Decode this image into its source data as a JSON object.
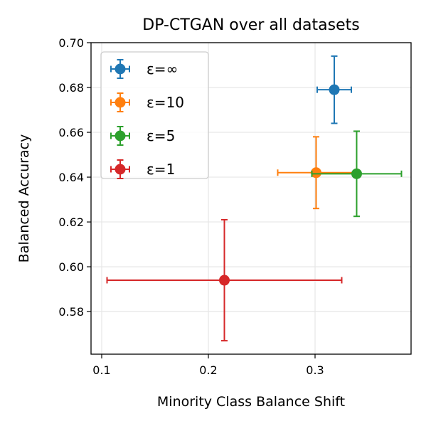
{
  "chart_data": {
    "type": "scatter",
    "title": "DP-CTGAN over all datasets",
    "xlabel": "Minority Class Balance Shift",
    "ylabel": "Balanced Accuracy",
    "xlim": [
      0.09,
      0.39
    ],
    "ylim": [
      0.561,
      0.7
    ],
    "xticks": [
      0.1,
      0.2,
      0.3
    ],
    "xtick_labels": [
      "0.1",
      "0.2",
      "0.3"
    ],
    "yticks": [
      0.58,
      0.6,
      0.62,
      0.64,
      0.66,
      0.68,
      0.7
    ],
    "ytick_labels": [
      "0.58",
      "0.60",
      "0.62",
      "0.64",
      "0.66",
      "0.68",
      "0.70"
    ],
    "grid": true,
    "legend_position": "top-left",
    "series": [
      {
        "name": "ε=∞",
        "color": "#1f77b4",
        "x": 0.318,
        "y": 0.679,
        "xerr": 0.016,
        "yerr": 0.015
      },
      {
        "name": "ε=10",
        "color": "#ff7f0e",
        "x": 0.301,
        "y": 0.642,
        "xerr": 0.036,
        "yerr": 0.016
      },
      {
        "name": "ε=5",
        "color": "#2ca02c",
        "x": 0.339,
        "y": 0.6415,
        "xerr": 0.042,
        "yerr": 0.019
      },
      {
        "name": "ε=1",
        "color": "#d62728",
        "x": 0.215,
        "y": 0.594,
        "xerr": 0.11,
        "yerr": 0.027
      }
    ]
  }
}
